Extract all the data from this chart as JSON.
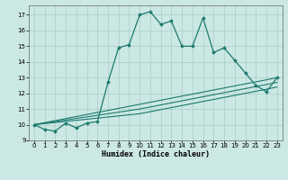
{
  "xlabel": "Humidex (Indice chaleur)",
  "bg_color": "#cce8e4",
  "grid_color": "#aaccc8",
  "line_color": "#1a7a6e",
  "xlim": [
    -0.5,
    23.5
  ],
  "ylim": [
    9.0,
    17.6
  ],
  "xticks": [
    0,
    1,
    2,
    3,
    4,
    5,
    6,
    7,
    8,
    9,
    10,
    11,
    12,
    13,
    14,
    15,
    16,
    17,
    18,
    19,
    20,
    21,
    22,
    23
  ],
  "yticks": [
    9,
    10,
    11,
    12,
    13,
    14,
    15,
    16,
    17
  ],
  "series_main": [
    10.0,
    9.7,
    9.6,
    10.1,
    9.8,
    10.1,
    10.2,
    12.7,
    14.9,
    15.1,
    17.0,
    17.2,
    16.4,
    16.6,
    15.0,
    15.0,
    16.8,
    14.6,
    14.9,
    14.1,
    13.3,
    12.5,
    12.1,
    13.0
  ],
  "series_linear": [
    [
      10.0,
      10.13,
      10.26,
      10.39,
      10.52,
      10.65,
      10.78,
      10.91,
      11.04,
      11.17,
      11.3,
      11.43,
      11.56,
      11.69,
      11.82,
      11.95,
      12.08,
      12.21,
      12.34,
      12.47,
      12.6,
      12.73,
      12.86,
      13.0
    ],
    [
      10.0,
      10.1,
      10.2,
      10.3,
      10.4,
      10.5,
      10.6,
      10.7,
      10.8,
      10.9,
      11.0,
      11.13,
      11.26,
      11.39,
      11.52,
      11.65,
      11.78,
      11.91,
      12.04,
      12.17,
      12.3,
      12.43,
      12.56,
      12.7
    ],
    [
      10.0,
      10.07,
      10.14,
      10.21,
      10.28,
      10.35,
      10.42,
      10.49,
      10.56,
      10.63,
      10.7,
      10.83,
      10.96,
      11.09,
      11.22,
      11.35,
      11.48,
      11.61,
      11.74,
      11.87,
      12.0,
      12.13,
      12.26,
      12.4
    ]
  ]
}
